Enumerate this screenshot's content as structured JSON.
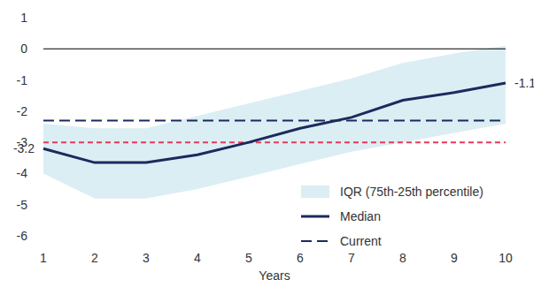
{
  "chart_data": {
    "type": "line",
    "categories": [
      "1",
      "2",
      "3",
      "4",
      "5",
      "6",
      "7",
      "8",
      "9",
      "10"
    ],
    "xlabel": "Years",
    "ylim": [
      -6,
      1
    ],
    "yticks": [
      -6,
      -5,
      -4,
      -3,
      -2,
      -1,
      0,
      1
    ],
    "legend": "lower right",
    "series": [
      {
        "name": "IQR (75th-25th percentile)",
        "type": "area",
        "color": "#dbeef3",
        "lower": [
          -4.0,
          -4.8,
          -4.8,
          -4.5,
          -4.1,
          -3.7,
          -3.3,
          -3.0,
          -2.7,
          -2.4
        ],
        "upper": [
          -2.4,
          -2.55,
          -2.55,
          -2.15,
          -1.75,
          -1.35,
          -0.95,
          -0.45,
          -0.15,
          0.1
        ]
      },
      {
        "name": "Median",
        "type": "line",
        "color": "#1b2a5e",
        "line_style": "solid",
        "values": [
          -3.2,
          -3.65,
          -3.65,
          -3.4,
          -3.0,
          -2.55,
          -2.2,
          -1.65,
          -1.4,
          -1.1
        ]
      },
      {
        "name": "Current",
        "type": "line",
        "color": "#1b2a5e",
        "line_style": "dashed",
        "values": [
          -2.3,
          -2.3,
          -2.3,
          -2.3,
          -2.3,
          -2.3,
          -2.3,
          -2.3,
          -2.3,
          -2.3
        ]
      }
    ],
    "reference_lines": [
      {
        "y": 0,
        "color": "#000000",
        "line_style": "solid"
      },
      {
        "y": -3,
        "color": "#e8395c",
        "line_style": "dashed"
      }
    ],
    "annotations": [
      {
        "text": "-3.2",
        "x": "1",
        "y": -3.2
      },
      {
        "text": "-1.1",
        "x": "10",
        "y": -1.1
      }
    ]
  }
}
